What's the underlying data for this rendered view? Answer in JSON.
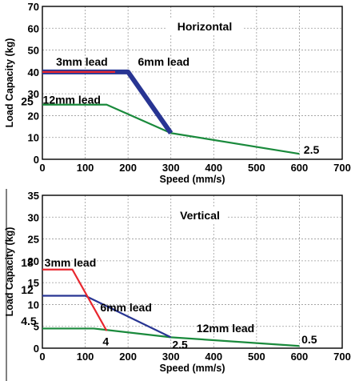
{
  "chart_data": [
    {
      "type": "line",
      "title": "Horizontal",
      "xlabel": "Speed (mm/s)",
      "ylabel": "Load Capacity (kg)",
      "xlim": [
        0,
        700
      ],
      "ylim": [
        0,
        70
      ],
      "xticks": [
        0,
        100,
        200,
        300,
        400,
        500,
        600,
        700
      ],
      "yticks": [
        0,
        10,
        20,
        30,
        40,
        50,
        60,
        70
      ],
      "grid": true,
      "series": [
        {
          "name": "12mm lead",
          "color": "#1a8a3c",
          "width": 2.2,
          "x": [
            0,
            150,
            300,
            600
          ],
          "y": [
            25,
            25,
            12,
            2.5
          ]
        },
        {
          "name": "6mm lead",
          "color": "#283593",
          "width": 6,
          "x": [
            0,
            200,
            300
          ],
          "y": [
            40,
            40,
            12
          ]
        },
        {
          "name": "3mm lead",
          "color": "#e8262e",
          "width": 2.2,
          "x": [
            0,
            170
          ],
          "y": [
            40,
            40
          ]
        }
      ],
      "annotations": [
        {
          "text": "3mm lead",
          "x": 32,
          "y": 42.8,
          "anchor": "start"
        },
        {
          "text": "6mm lead",
          "x": 223,
          "y": 42.8,
          "anchor": "start"
        },
        {
          "text": "25",
          "x": -50,
          "y": 24.8,
          "anchor": "start"
        },
        {
          "text": "12mm lead",
          "x": 1,
          "y": 25.4,
          "anchor": "start"
        },
        {
          "text": "2.5",
          "x": 610,
          "y": 2.6,
          "anchor": "start"
        }
      ]
    },
    {
      "type": "line",
      "title": "Vertical",
      "xlabel": "Speed (mm/s)",
      "ylabel": "Load Capacity (kg)",
      "xlim": [
        0,
        700
      ],
      "ylim": [
        0,
        35
      ],
      "xticks": [
        0,
        100,
        200,
        300,
        400,
        500,
        600,
        700
      ],
      "yticks": [
        0,
        5,
        10,
        15,
        20,
        25,
        30,
        35
      ],
      "grid": true,
      "series": [
        {
          "name": "12mm lead",
          "color": "#1a8a3c",
          "width": 2.2,
          "x": [
            0,
            120,
            300,
            600
          ],
          "y": [
            4.5,
            4.5,
            2.5,
            0.5
          ]
        },
        {
          "name": "6mm lead",
          "color": "#283593",
          "width": 2.2,
          "x": [
            0,
            100,
            300
          ],
          "y": [
            12,
            12,
            2.5
          ]
        },
        {
          "name": "3mm lead",
          "color": "#e8262e",
          "width": 2.2,
          "x": [
            0,
            70,
            150
          ],
          "y": [
            18,
            18,
            4
          ]
        }
      ],
      "annotations": [
        {
          "text": "18",
          "x": -50,
          "y": 18.7,
          "anchor": "start"
        },
        {
          "text": "3mm lead",
          "x": 5,
          "y": 18.7,
          "anchor": "start"
        },
        {
          "text": "12",
          "x": -50,
          "y": 12.5,
          "anchor": "start"
        },
        {
          "text": "6mm lead",
          "x": 135,
          "y": 8.4,
          "anchor": "start"
        },
        {
          "text": "4.5",
          "x": -50,
          "y": 5.3,
          "anchor": "start"
        },
        {
          "text": "12mm lead",
          "x": 360,
          "y": 3.7,
          "anchor": "start"
        },
        {
          "text": "4",
          "x": 148,
          "y": 0.6,
          "anchor": "middle"
        },
        {
          "text": "2.5",
          "x": 303,
          "y": -0.1,
          "anchor": "start"
        },
        {
          "text": "0.5",
          "x": 605,
          "y": 1.1,
          "anchor": "start"
        }
      ]
    }
  ]
}
